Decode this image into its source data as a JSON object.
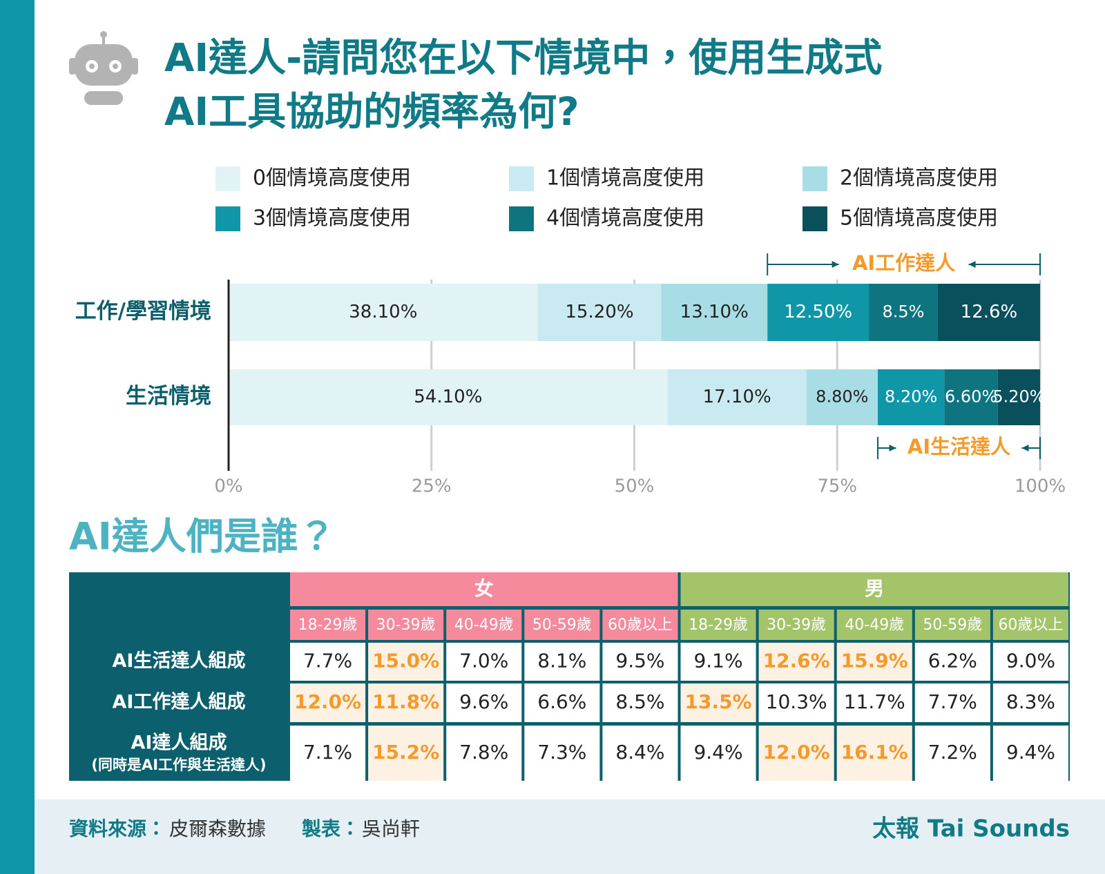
{
  "chart_data": {
    "type": "stacked-bar-horizontal",
    "title": [
      "AI達人-請問您在以下情境中，使用生成式",
      "AI工具協助的頻率為何?"
    ],
    "categories": [
      "工作/學習情境",
      "生活情境"
    ],
    "series": [
      {
        "name": "0個情境高度使用",
        "color": "#e2f3f6",
        "values": [
          38.1,
          54.1
        ],
        "value_labels": [
          "38.10%",
          "54.10%"
        ]
      },
      {
        "name": "1個情境高度使用",
        "color": "#c9eaf0",
        "values": [
          15.2,
          17.1
        ],
        "value_labels": [
          "15.20%",
          "17.10%"
        ]
      },
      {
        "name": "2個情境高度使用",
        "color": "#a9dde6",
        "values": [
          13.1,
          8.8
        ],
        "value_labels": [
          "13.10%",
          "8.80%"
        ]
      },
      {
        "name": "3個情境高度使用",
        "color": "#0f97a8",
        "values": [
          12.5,
          8.2
        ],
        "value_labels": [
          "12.50%",
          "8.20%"
        ]
      },
      {
        "name": "4個情境高度使用",
        "color": "#0d7480",
        "values": [
          8.5,
          6.6
        ],
        "value_labels": [
          "8.5%",
          "6.60%"
        ]
      },
      {
        "name": "5個情境高度使用",
        "color": "#0a4f5c",
        "values": [
          12.6,
          5.2
        ],
        "value_labels": [
          "12.6%",
          "5.20%"
        ]
      }
    ],
    "xlim": [
      0,
      100
    ],
    "xticks": [
      {
        "value": 0,
        "label": "0%"
      },
      {
        "value": 25,
        "label": "25%"
      },
      {
        "value": 50,
        "label": "50%"
      },
      {
        "value": 75,
        "label": "75%"
      },
      {
        "value": 100,
        "label": "100%"
      }
    ],
    "grid": true,
    "annotations": [
      "AI工作達人",
      "AI生活達人"
    ]
  },
  "table": {
    "title": "AI達人們是誰？",
    "groups": [
      {
        "name": "女",
        "color": "#f48a9c"
      },
      {
        "name": "男",
        "color": "#a4c46a"
      }
    ],
    "columns": [
      "18-29歲",
      "30-39歲",
      "40-49歲",
      "50-59歲",
      "60歲以上",
      "18-29歲",
      "30-39歲",
      "40-49歲",
      "50-59歲",
      "60歲以上"
    ],
    "rows": [
      {
        "label": "AI生活達人組成",
        "cells": [
          "7.7%",
          "15.0%",
          "7.0%",
          "8.1%",
          "9.5%",
          "9.1%",
          "12.6%",
          "15.9%",
          "6.2%",
          "9.0%"
        ],
        "highlighted": [
          1,
          6,
          7
        ]
      },
      {
        "label": "AI工作達人組成",
        "cells": [
          "12.0%",
          "11.8%",
          "9.6%",
          "6.6%",
          "8.5%",
          "13.5%",
          "10.3%",
          "11.7%",
          "7.7%",
          "8.3%"
        ],
        "highlighted": [
          0,
          1,
          5
        ]
      },
      {
        "label": "AI達人組成",
        "note": "(同時是AI工作與生活達人)",
        "cells": [
          "7.1%",
          "15.2%",
          "7.8%",
          "7.3%",
          "8.4%",
          "9.4%",
          "12.0%",
          "16.1%",
          "7.2%",
          "9.4%"
        ],
        "highlighted": [
          1,
          6,
          7
        ]
      }
    ]
  },
  "footer": {
    "source_label": "資料來源：",
    "source": "皮爾森數據",
    "author_label": "製表：",
    "author": "吳尚軒",
    "brand": "太報 Tai Sounds"
  }
}
